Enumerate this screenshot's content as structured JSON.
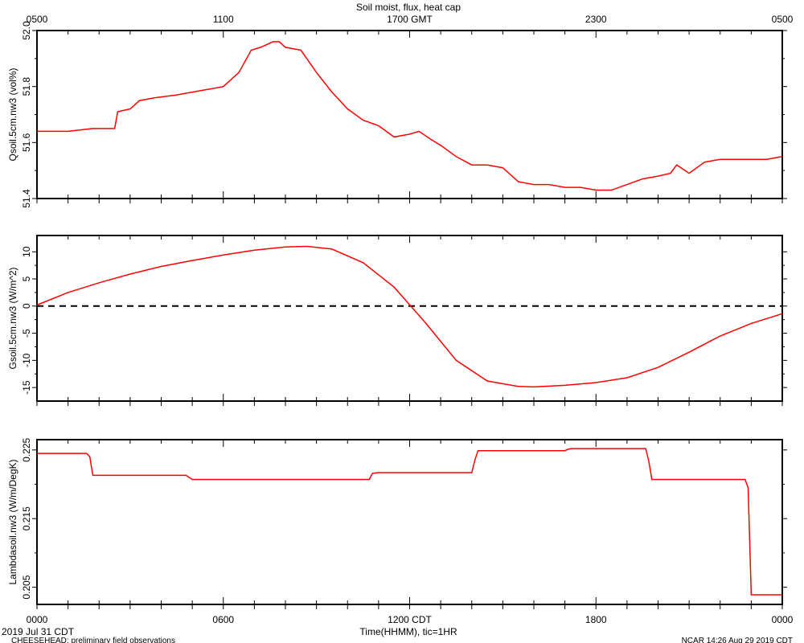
{
  "page": {
    "title": "Soil moist, flux, heat cap",
    "xlabel": "Time(HHMM), tic=1HR",
    "date_label": "2019 Jul 31 CDT",
    "footer_left": "CHEESEHEAD: preliminary field observations",
    "footer_right": "NCAR 14:26 Aug 29 2019 CDT",
    "top_ticks": [
      "0500",
      "1100",
      "1700 GMT",
      "2300",
      "0500"
    ],
    "bottom_ticks": [
      "0000",
      "0600",
      "1200 CDT",
      "1800",
      "0000"
    ],
    "line_color": "#ff0000"
  },
  "chart_data": [
    {
      "type": "line",
      "ylabel": "Qsoil.5cm.nw3 (vol%)",
      "ylim": [
        51.4,
        52.0
      ],
      "yticks": [
        "51.4",
        "51.6",
        "51.8",
        "52.0"
      ],
      "grid": false,
      "series": [
        {
          "x": [
            0,
            1,
            1.8,
            2.5,
            2.6,
            3.0,
            3.3,
            3.8,
            4.5,
            5.0,
            5.5,
            6.0,
            6.5,
            6.9,
            7.2,
            7.6,
            7.8,
            8.0,
            8.5,
            9.0,
            9.5,
            10.0,
            10.5,
            11.0,
            11.5,
            12.0,
            12.3,
            12.7,
            13.0,
            13.5,
            14.0,
            14.5,
            15.0,
            15.5,
            16.0,
            16.5,
            17.0,
            17.5,
            18.0,
            18.5,
            19.0,
            19.5,
            20.0,
            20.4,
            20.6,
            21.0,
            21.5,
            22.0,
            22.5,
            23.0,
            23.5,
            24.0
          ],
          "y": [
            51.64,
            51.64,
            51.65,
            51.65,
            51.71,
            51.72,
            51.75,
            51.76,
            51.77,
            51.78,
            51.79,
            51.8,
            51.85,
            51.93,
            51.94,
            51.96,
            51.96,
            51.94,
            51.93,
            51.85,
            51.78,
            51.72,
            51.68,
            51.66,
            51.62,
            51.63,
            51.64,
            51.61,
            51.59,
            51.55,
            51.52,
            51.52,
            51.51,
            51.46,
            51.45,
            51.45,
            51.44,
            51.44,
            51.43,
            51.43,
            51.45,
            51.47,
            51.48,
            51.49,
            51.52,
            51.49,
            51.53,
            51.54,
            51.54,
            51.54,
            51.54,
            51.55
          ]
        }
      ]
    },
    {
      "type": "line",
      "ylabel": "Gsoil.5cm.nw3 (W/m^2)",
      "ylim": [
        -17.5,
        13
      ],
      "yticks": [
        "-15",
        "-10",
        "-5",
        "0",
        "5",
        "10"
      ],
      "reference_line": 0,
      "grid": false,
      "series": [
        {
          "x": [
            0,
            1,
            2,
            3,
            4,
            5,
            6,
            7,
            8,
            8.7,
            9.5,
            10.5,
            11.5,
            12.5,
            13.5,
            14.5,
            15.5,
            16,
            17,
            18,
            19,
            20,
            21,
            22,
            23,
            24
          ],
          "y": [
            0.2,
            2.5,
            4.3,
            5.9,
            7.3,
            8.4,
            9.4,
            10.3,
            10.9,
            11.0,
            10.5,
            8.0,
            3.5,
            -3.0,
            -10.0,
            -13.8,
            -14.8,
            -14.9,
            -14.6,
            -14.1,
            -13.2,
            -11.3,
            -8.5,
            -5.5,
            -3.2,
            -1.4
          ]
        }
      ]
    },
    {
      "type": "line",
      "ylabel": "Lambdasoil.nw3 (W/m/DegK)",
      "ylim": [
        0.2025,
        0.2265
      ],
      "yticks": [
        "0.205",
        "0.215",
        "0.225"
      ],
      "grid": false,
      "series": [
        {
          "x": [
            0,
            1.6,
            1.7,
            1.8,
            4.8,
            4.9,
            5.0,
            10.7,
            10.8,
            11.0,
            14.0,
            14.1,
            14.2,
            17.0,
            17.1,
            17.2,
            19.6,
            19.7,
            19.8,
            22.8,
            22.9,
            23.0,
            24.0
          ],
          "y": [
            0.2245,
            0.2245,
            0.224,
            0.2213,
            0.2213,
            0.221,
            0.2207,
            0.2207,
            0.2216,
            0.2217,
            0.2217,
            0.2235,
            0.2249,
            0.2249,
            0.2251,
            0.2252,
            0.2252,
            0.2234,
            0.2207,
            0.2207,
            0.2195,
            0.2039,
            0.2039
          ]
        }
      ]
    }
  ]
}
